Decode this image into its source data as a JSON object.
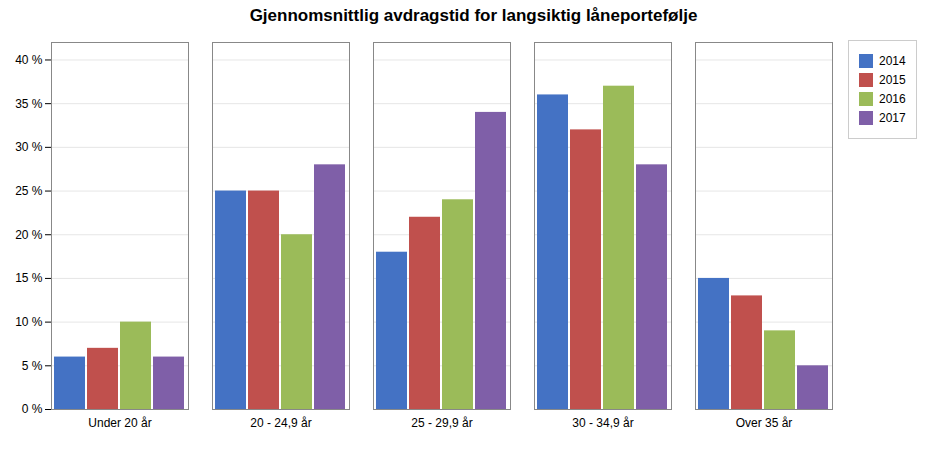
{
  "chart_data": {
    "type": "bar",
    "title": "Gjennomsnittlig avdragstid for langsiktig låneportefølje",
    "categories": [
      "Under 20 år",
      "20 - 24,9 år",
      "25 - 29,9 år",
      "30 - 34,9 år",
      "Over 35 år"
    ],
    "series": [
      {
        "name": "2014",
        "color": "#4472C4",
        "values": [
          6,
          25,
          18,
          36,
          15
        ]
      },
      {
        "name": "2015",
        "color": "#C0504D",
        "values": [
          7,
          25,
          22,
          32,
          13
        ]
      },
      {
        "name": "2016",
        "color": "#9BBB59",
        "values": [
          10,
          20,
          24,
          37,
          9
        ]
      },
      {
        "name": "2017",
        "color": "#7F5FA8",
        "values": [
          6,
          28,
          34,
          28,
          5
        ]
      }
    ],
    "ylim": [
      0,
      42
    ],
    "yticks": [
      {
        "value": 0,
        "label": "0 %"
      },
      {
        "value": 5,
        "label": "5 %"
      },
      {
        "value": 10,
        "label": "10 %"
      },
      {
        "value": 15,
        "label": "15 %"
      },
      {
        "value": 20,
        "label": "20 %"
      },
      {
        "value": 25,
        "label": "25 %"
      },
      {
        "value": 30,
        "label": "30 %"
      },
      {
        "value": 35,
        "label": "35 %"
      },
      {
        "value": 40,
        "label": "40 %"
      }
    ],
    "grid": true,
    "legend": "right"
  }
}
